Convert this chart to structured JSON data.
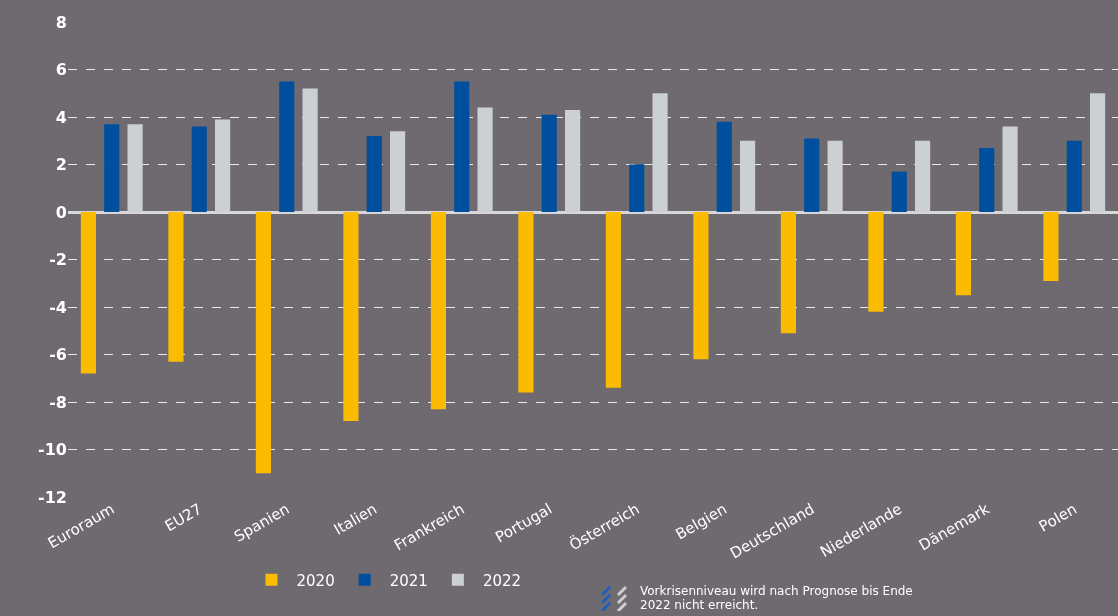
{
  "chart_data": {
    "type": "bar",
    "categories": [
      "Euroraum",
      "EU27",
      "Spanien",
      "Italien",
      "Frankreich",
      "Portugal",
      "Österreich",
      "Belgien",
      "Deutschland",
      "Niederlande",
      "Dänemark",
      "Polen"
    ],
    "series": [
      {
        "name": "2020",
        "color": "#fbbb00",
        "values": [
          -6.8,
          -6.3,
          -11.0,
          -8.8,
          -8.3,
          -7.6,
          -7.4,
          -6.2,
          -5.1,
          -4.2,
          -3.5,
          -2.9
        ]
      },
      {
        "name": "2021",
        "color": "#004f9f",
        "values": [
          3.7,
          3.6,
          5.5,
          3.2,
          5.5,
          4.1,
          2.0,
          3.8,
          3.1,
          1.7,
          2.7,
          3.0
        ]
      },
      {
        "name": "2022",
        "color": "#cdd0d2",
        "values": [
          3.7,
          3.9,
          5.2,
          3.4,
          4.4,
          4.3,
          5.0,
          3.0,
          3.0,
          3.0,
          3.6,
          5.0
        ]
      }
    ],
    "ylim": [
      -12,
      8
    ],
    "yticks": [
      -12,
      -10,
      -8,
      -6,
      -4,
      -2,
      0,
      2,
      4,
      6,
      8
    ],
    "grid": "y",
    "legend": "bottom",
    "annotations": [
      "Vorkrisenniveau wird nach Prognose bis Ende 2022 nicht erreicht."
    ]
  }
}
